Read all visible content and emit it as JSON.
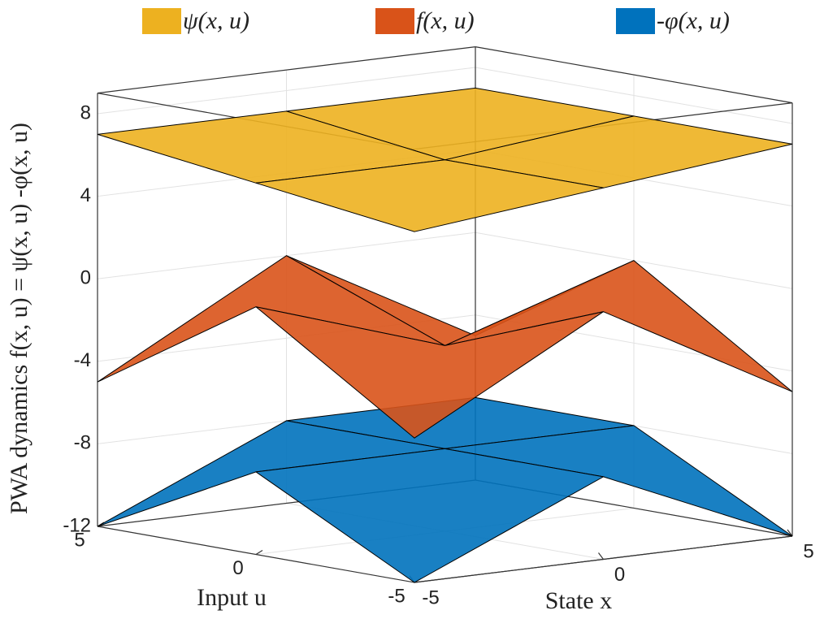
{
  "chart_data": {
    "type": "surface3d",
    "zlabel": "PWA dynamics f(x, u) = ψ(x, u) -φ(x, u)",
    "xlabel": "State x",
    "ylabel": "Input u",
    "x": [
      -5,
      0,
      5
    ],
    "y": [
      -5,
      0,
      5
    ],
    "xlim": [
      -5,
      5
    ],
    "ylim": [
      -5,
      5
    ],
    "zlim": [
      -12,
      9
    ],
    "xticks": [
      -5,
      0,
      5
    ],
    "yticks": [
      -5,
      0,
      5
    ],
    "zticks": [
      -12,
      -8,
      -4,
      0,
      4,
      8
    ],
    "grid": true,
    "series": [
      {
        "name": "-φ(x, u)",
        "color": "#0072BD",
        "values": [
          [
            -12,
            -8,
            -12
          ],
          [
            -8,
            -8,
            -8
          ],
          [
            -12,
            -8,
            -8
          ]
        ]
      },
      {
        "name": "f(x, u)",
        "color": "#D95319",
        "values": [
          [
            -5,
            0,
            -5
          ],
          [
            0,
            -3,
            0
          ],
          [
            -5,
            0,
            -5
          ]
        ]
      },
      {
        "name": "ψ(x, u)",
        "color": "#EDB120",
        "values": [
          [
            5,
            6,
            7
          ],
          [
            6,
            6,
            7
          ],
          [
            7,
            7,
            7
          ]
        ]
      }
    ]
  }
}
